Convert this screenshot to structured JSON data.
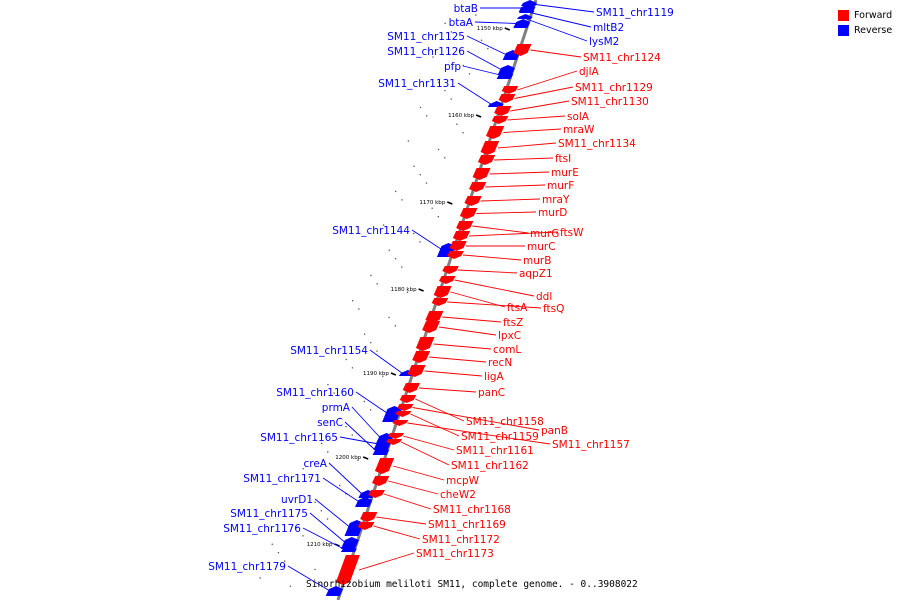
{
  "caption": "Sinorhizobium meliloti SM11, complete genome. - 0..3908022",
  "legend": [
    {
      "label": "Forward",
      "color": "#ff0000"
    },
    {
      "label": "Reverse",
      "color": "#0000ff"
    }
  ],
  "colors": {
    "forward": "#ff0000",
    "reverse": "#0000ff",
    "axis": "#808080"
  },
  "ticks": [
    "1150 kbp",
    "1160 kbp",
    "1170 kbp",
    "1180 kbp",
    "1190 kbp",
    "1200 kbp",
    "1210 kbp"
  ],
  "genes": [
    {
      "name": "btaB",
      "strand": "reverse"
    },
    {
      "name": "SM11_chr1119",
      "strand": "reverse"
    },
    {
      "name": "btaA",
      "strand": "reverse"
    },
    {
      "name": "mltB2",
      "strand": "reverse"
    },
    {
      "name": "lysM2",
      "strand": "reverse"
    },
    {
      "name": "SM11_chr1125",
      "strand": "reverse"
    },
    {
      "name": "SM11_chr1124",
      "strand": "forward"
    },
    {
      "name": "SM11_chr1126",
      "strand": "reverse"
    },
    {
      "name": "pfp",
      "strand": "reverse"
    },
    {
      "name": "djlA",
      "strand": "forward"
    },
    {
      "name": "SM11_chr1131",
      "strand": "reverse"
    },
    {
      "name": "SM11_chr1129",
      "strand": "forward"
    },
    {
      "name": "SM11_chr1130",
      "strand": "forward"
    },
    {
      "name": "solA",
      "strand": "forward"
    },
    {
      "name": "mraW",
      "strand": "forward"
    },
    {
      "name": "SM11_chr1134",
      "strand": "forward"
    },
    {
      "name": "ftsI",
      "strand": "forward"
    },
    {
      "name": "murE",
      "strand": "forward"
    },
    {
      "name": "murF",
      "strand": "forward"
    },
    {
      "name": "mraY",
      "strand": "forward"
    },
    {
      "name": "murD",
      "strand": "forward"
    },
    {
      "name": "SM11_chr1144",
      "strand": "reverse"
    },
    {
      "name": "murG",
      "strand": "forward"
    },
    {
      "name": "ftsW",
      "strand": "forward"
    },
    {
      "name": "murC",
      "strand": "forward"
    },
    {
      "name": "murB",
      "strand": "forward"
    },
    {
      "name": "aqpZ1",
      "strand": "forward"
    },
    {
      "name": "ddl",
      "strand": "forward"
    },
    {
      "name": "ftsA",
      "strand": "forward"
    },
    {
      "name": "ftsQ",
      "strand": "forward"
    },
    {
      "name": "ftsZ",
      "strand": "forward"
    },
    {
      "name": "lpxC",
      "strand": "forward"
    },
    {
      "name": "comL",
      "strand": "forward"
    },
    {
      "name": "SM11_chr1154",
      "strand": "reverse"
    },
    {
      "name": "recN",
      "strand": "forward"
    },
    {
      "name": "ligA",
      "strand": "forward"
    },
    {
      "name": "SM11_chr1160",
      "strand": "reverse"
    },
    {
      "name": "panC",
      "strand": "forward"
    },
    {
      "name": "prmA",
      "strand": "reverse"
    },
    {
      "name": "senC",
      "strand": "reverse"
    },
    {
      "name": "SM11_chr1158",
      "strand": "forward"
    },
    {
      "name": "panB",
      "strand": "forward"
    },
    {
      "name": "SM11_chr1165",
      "strand": "reverse"
    },
    {
      "name": "SM11_chr1159",
      "strand": "forward"
    },
    {
      "name": "SM11_chr1157",
      "strand": "forward"
    },
    {
      "name": "SM11_chr1161",
      "strand": "forward"
    },
    {
      "name": "creA",
      "strand": "reverse"
    },
    {
      "name": "SM11_chr1162",
      "strand": "forward"
    },
    {
      "name": "SM11_chr1171",
      "strand": "reverse"
    },
    {
      "name": "mcpW",
      "strand": "forward"
    },
    {
      "name": "uvrD1",
      "strand": "reverse"
    },
    {
      "name": "cheW2",
      "strand": "forward"
    },
    {
      "name": "SM11_chr1168",
      "strand": "forward"
    },
    {
      "name": "SM11_chr1175",
      "strand": "reverse"
    },
    {
      "name": "SM11_chr1169",
      "strand": "forward"
    },
    {
      "name": "SM11_chr1176",
      "strand": "reverse"
    },
    {
      "name": "SM11_chr1172",
      "strand": "forward"
    },
    {
      "name": "SM11_chr1173",
      "strand": "forward"
    },
    {
      "name": "SM11_chr1179",
      "strand": "reverse"
    }
  ]
}
